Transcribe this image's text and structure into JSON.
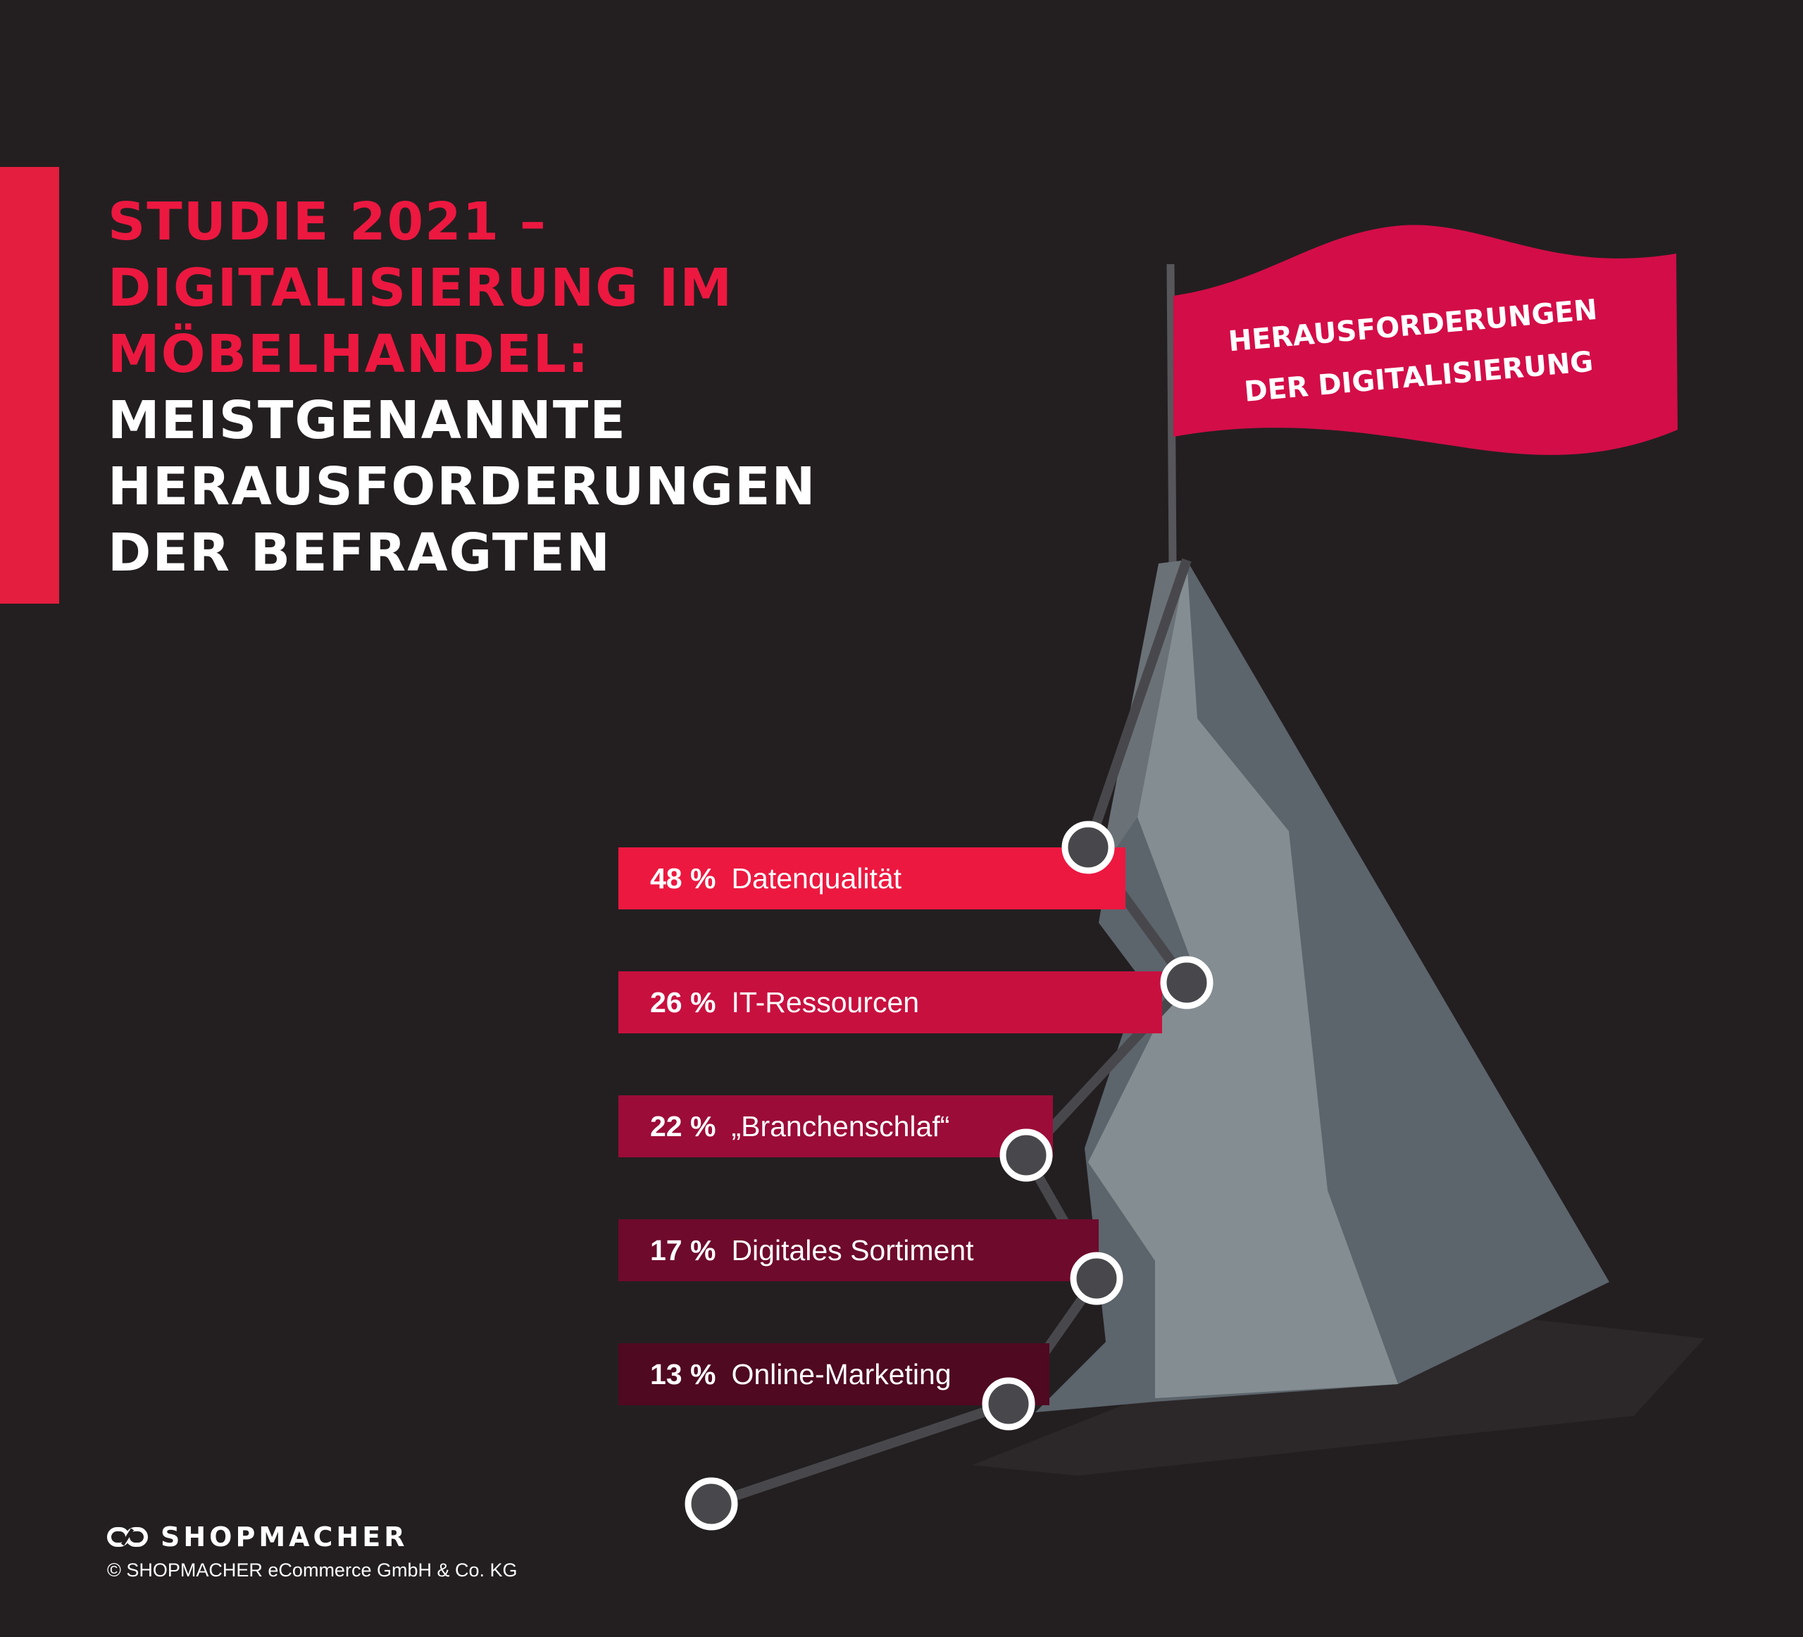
{
  "headline": {
    "red_lines": [
      "STUDIE 2021 –",
      "DIGITALISIERUNG IM",
      "MÖBELHANDEL:"
    ],
    "white_lines": [
      "MEISTGENANNTE",
      "HERAUSFORDERUNGEN",
      "DER BEFRAGTEN"
    ]
  },
  "flag": {
    "lines": [
      "HERAUSFORDERUNGEN",
      "DER DIGITALISIERUNG"
    ]
  },
  "footer": {
    "brand": "SHOPMACHER",
    "copyright": "© SHOPMACHER eCommerce GmbH & Co. KG"
  },
  "colors": {
    "background": "#231f20",
    "accent": "#ec1840",
    "bar_shades": [
      "#ec1840",
      "#c8103f",
      "#9b0c38",
      "#6e0a2b",
      "#4f0921"
    ]
  },
  "chart_data": {
    "type": "bar",
    "orientation": "horizontal",
    "unit": "%",
    "categories": [
      "Datenqualität",
      "IT-Ressourcen",
      "„Branchenschlaf“",
      "Digitales Sortiment",
      "Online-Marketing"
    ],
    "values": [
      48,
      26,
      22,
      17,
      13
    ],
    "value_labels": [
      "48 %",
      "26 %",
      "22 %",
      "17 %",
      "13 %"
    ]
  }
}
